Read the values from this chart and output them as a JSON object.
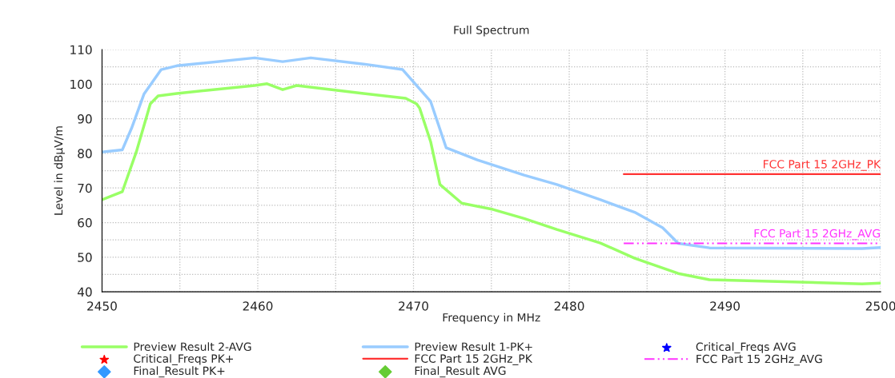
{
  "chart_data": {
    "type": "line",
    "title": "Full Spectrum",
    "xlabel": "Frequency in MHz",
    "ylabel": "Level in dBµV/m",
    "xlim": [
      2450,
      2500
    ],
    "xticks": [
      2450,
      {
        "value": 2455,
        "label": null
      },
      2460,
      {
        "value": 2465,
        "label": null
      },
      2470,
      {
        "value": 2475,
        "label": null
      },
      2480,
      {
        "value": 2485,
        "label": null
      },
      2490,
      {
        "value": 2495,
        "label": null
      },
      2500
    ],
    "ylim": [
      40,
      110
    ],
    "yticks": [
      40,
      {
        "value": 45,
        "label": null
      },
      50,
      {
        "value": 55,
        "label": null
      },
      60,
      {
        "value": 65,
        "label": null
      },
      70,
      {
        "value": 75,
        "label": null
      },
      80,
      {
        "value": 85,
        "label": null
      },
      90,
      {
        "value": 95,
        "label": null
      },
      100,
      {
        "value": 105,
        "label": null
      },
      110
    ],
    "grid": true,
    "legend": "bottom",
    "annotations": [
      {
        "text": "FCC Part 15 2GHz_PK",
        "x": 2500,
        "y": 74
      },
      {
        "text": "FCC Part 15 2GHz_AVG",
        "x": 2500,
        "y": 54
      }
    ],
    "series": [
      {
        "name": "Preview Result 2-AVG",
        "color": "#99ff66",
        "x": [
          2450,
          2451.3,
          2452.2,
          2453.1,
          2453.6,
          2454.8,
          2459.8,
          2460.6,
          2461.6,
          2462.5,
          2466.8,
          2469.5,
          2470.2,
          2470.4,
          2471.1,
          2471.7,
          2473.1,
          2475.1,
          2477.1,
          2479.2,
          2482,
          2484.2,
          2487,
          2489,
          2498.8,
          2500
        ],
        "values": [
          66.6,
          68.9,
          80.4,
          94.3,
          96.6,
          97.3,
          99.6,
          100.1,
          98.4,
          99.6,
          97.3,
          95.9,
          94.3,
          93,
          83.4,
          71,
          65.6,
          63.8,
          61.2,
          58,
          54.1,
          49.7,
          45.3,
          43.5,
          42.3,
          42.5
        ]
      },
      {
        "name": "Critical_Freqs PK+",
        "type": "scatter",
        "marker": "star",
        "color": "#ff0000"
      },
      {
        "name": "Final_Result PK+",
        "type": "scatter",
        "marker": "diamond",
        "color": "#3399ff"
      },
      {
        "name": "Preview Result 1-PK+",
        "color": "#99ccff",
        "x": [
          2450,
          2451.3,
          2451.9,
          2452.7,
          2453.8,
          2454.8,
          2459.8,
          2461.6,
          2463.4,
          2466.8,
          2469.3,
          2471.1,
          2472.1,
          2474.1,
          2477.1,
          2479.2,
          2482,
          2484.2,
          2486,
          2487,
          2489,
          2498.8,
          2500
        ],
        "values": [
          80.4,
          81,
          87.3,
          97.2,
          104.2,
          105.3,
          107.6,
          106.5,
          107.6,
          105.8,
          104.2,
          95,
          81.6,
          78.1,
          73.7,
          71,
          66.6,
          63,
          58.5,
          54,
          52.7,
          52.5,
          52.8
        ]
      },
      {
        "name": "FCC Part 15 2GHz_PK",
        "color": "#ff3333",
        "line_style": "solid",
        "x": [
          2483.5,
          2500
        ],
        "values": [
          74,
          74
        ]
      },
      {
        "name": "Final_Result AVG",
        "type": "scatter",
        "marker": "diamond",
        "color": "#66cc33"
      },
      {
        "name": "Critical_Freqs AVG",
        "type": "scatter",
        "marker": "star",
        "color": "#0000ff"
      },
      {
        "name": "FCC Part 15 2GHz_AVG",
        "color": "#ff33ff",
        "line_style": "dashed",
        "x": [
          2483.5,
          2500
        ],
        "values": [
          54,
          54
        ]
      }
    ]
  }
}
